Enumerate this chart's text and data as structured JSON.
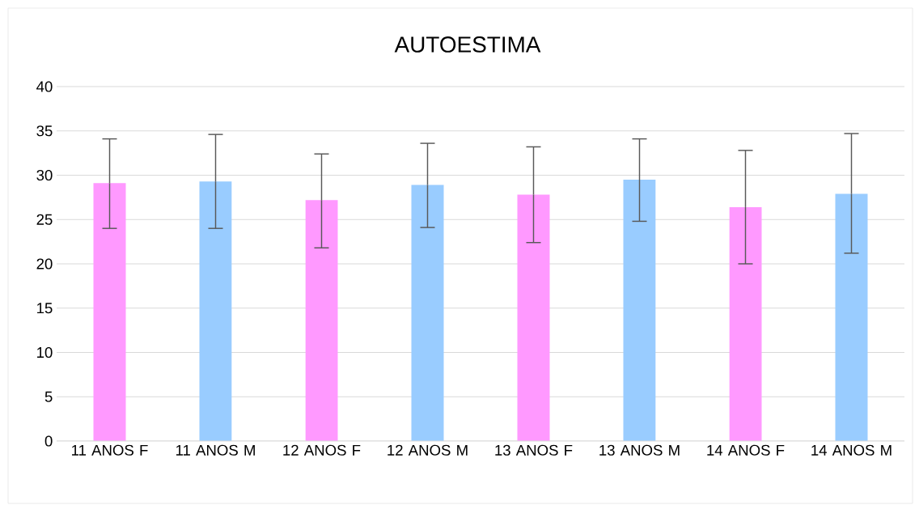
{
  "chart_data": {
    "type": "bar",
    "title": "AUTOESTIMA",
    "categories": [
      "11 ANOS F",
      "11 ANOS M",
      "12 ANOS F",
      "12 ANOS M",
      "13 ANOS F",
      "13 ANOS M",
      "14 ANOS F",
      "14 ANOS M"
    ],
    "values": [
      29.1,
      29.3,
      27.2,
      28.9,
      27.8,
      29.5,
      26.4,
      27.9
    ],
    "colors": [
      "#ff99ff",
      "#99ccff",
      "#ff99ff",
      "#99ccff",
      "#ff99ff",
      "#99ccff",
      "#ff99ff",
      "#99ccff"
    ],
    "errors": [
      [
        24.0,
        34.1
      ],
      [
        24.0,
        34.6
      ],
      [
        21.8,
        32.4
      ],
      [
        24.1,
        33.6
      ],
      [
        22.4,
        33.2
      ],
      [
        24.8,
        34.1
      ],
      [
        20.0,
        32.8
      ],
      [
        21.2,
        34.7
      ]
    ],
    "ylim": [
      0,
      40
    ],
    "yticks": [
      0,
      5,
      10,
      15,
      20,
      25,
      30,
      35,
      40
    ],
    "grid": "y"
  }
}
